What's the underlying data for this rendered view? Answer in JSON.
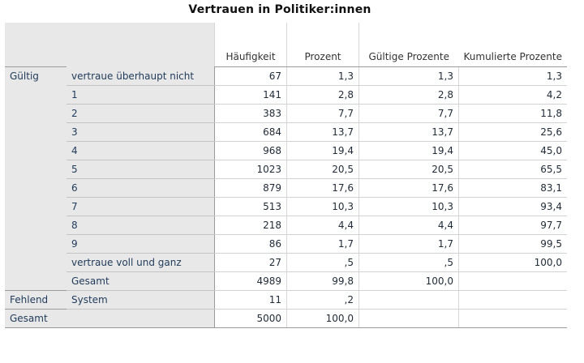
{
  "title": "Vertrauen in Politiker:innen",
  "columns": [
    "Häufigkeit",
    "Prozent",
    "Gültige Prozente",
    "Kumulierte Prozente"
  ],
  "groups": {
    "valid": "Gültig",
    "missing": "Fehlend",
    "total": "Gesamt"
  },
  "rows": [
    {
      "label": "vertraue überhaupt nicht",
      "freq": "67",
      "pct": "1,3",
      "valid_pct": "1,3",
      "cum_pct": "1,3"
    },
    {
      "label": "1",
      "freq": "141",
      "pct": "2,8",
      "valid_pct": "2,8",
      "cum_pct": "4,2"
    },
    {
      "label": "2",
      "freq": "383",
      "pct": "7,7",
      "valid_pct": "7,7",
      "cum_pct": "11,8"
    },
    {
      "label": "3",
      "freq": "684",
      "pct": "13,7",
      "valid_pct": "13,7",
      "cum_pct": "25,6"
    },
    {
      "label": "4",
      "freq": "968",
      "pct": "19,4",
      "valid_pct": "19,4",
      "cum_pct": "45,0"
    },
    {
      "label": "5",
      "freq": "1023",
      "pct": "20,5",
      "valid_pct": "20,5",
      "cum_pct": "65,5"
    },
    {
      "label": "6",
      "freq": "879",
      "pct": "17,6",
      "valid_pct": "17,6",
      "cum_pct": "83,1"
    },
    {
      "label": "7",
      "freq": "513",
      "pct": "10,3",
      "valid_pct": "10,3",
      "cum_pct": "93,4"
    },
    {
      "label": "8",
      "freq": "218",
      "pct": "4,4",
      "valid_pct": "4,4",
      "cum_pct": "97,7"
    },
    {
      "label": "9",
      "freq": "86",
      "pct": "1,7",
      "valid_pct": "1,7",
      "cum_pct": "99,5"
    },
    {
      "label": "vertraue voll und ganz",
      "freq": "27",
      "pct": ",5",
      "valid_pct": ",5",
      "cum_pct": "100,0"
    },
    {
      "label": "Gesamt",
      "freq": "4989",
      "pct": "99,8",
      "valid_pct": "100,0",
      "cum_pct": ""
    }
  ],
  "missing_row": {
    "label": "System",
    "freq": "11",
    "pct": ",2",
    "valid_pct": "",
    "cum_pct": ""
  },
  "total_row": {
    "freq": "5000",
    "pct": "100,0",
    "valid_pct": "",
    "cum_pct": ""
  }
}
